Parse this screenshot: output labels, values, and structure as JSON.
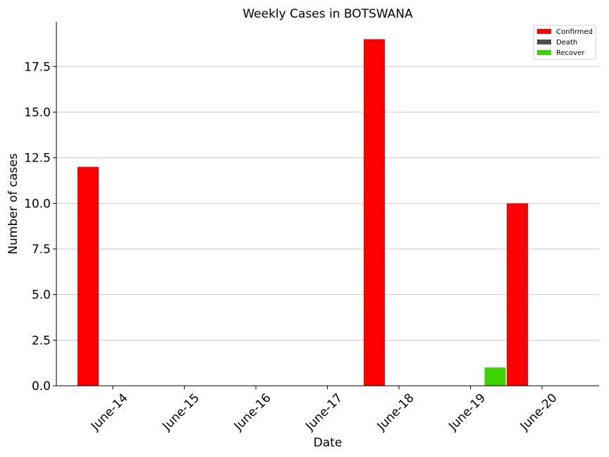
{
  "chart_data": {
    "type": "bar",
    "title": "Weekly Cases in BOTSWANA",
    "xlabel": "Date",
    "ylabel": "Number of cases",
    "categories": [
      "June-14",
      "June-15",
      "June-16",
      "June-17",
      "June-18",
      "June-19",
      "June-20"
    ],
    "series": [
      {
        "name": "Confirmed",
        "color": "#ff0000",
        "values": [
          12,
          0,
          0,
          0,
          19,
          0,
          10
        ]
      },
      {
        "name": "Death",
        "color": "#4d4d4d",
        "values": [
          0,
          0,
          0,
          0,
          0,
          0,
          0
        ]
      },
      {
        "name": "Recover",
        "color": "#3cd400",
        "values": [
          0,
          0,
          0,
          0,
          0,
          1,
          0
        ]
      }
    ],
    "ylim": [
      0,
      19.95
    ],
    "yticks": [
      "0.0",
      "2.5",
      "5.0",
      "7.5",
      "10.0",
      "12.5",
      "15.0",
      "17.5"
    ],
    "grid": "horizontal",
    "legend_position": "top-right"
  }
}
